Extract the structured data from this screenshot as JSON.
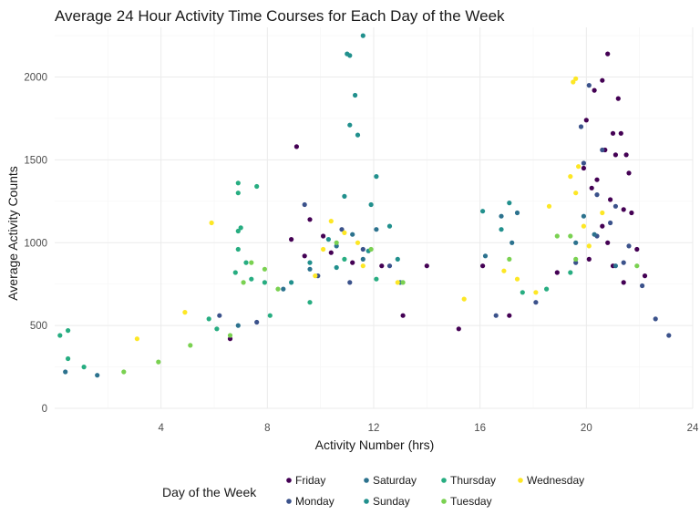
{
  "chart_data": {
    "type": "scatter",
    "title": "Average 24 Hour Activity Time Courses for Each Day of the Week",
    "xlabel": "Activity Number (hrs)",
    "ylabel": "Average Activity Counts",
    "xlim": [
      0,
      24
    ],
    "ylim": [
      0,
      2300
    ],
    "x_ticks": [
      4,
      8,
      12,
      16,
      20,
      24
    ],
    "y_ticks": [
      0,
      500,
      1000,
      1500,
      2000
    ],
    "grid": true,
    "legend_position": "bottom",
    "legend_title": "Day of the Week",
    "series": [
      {
        "name": "Friday",
        "color": "#440154",
        "points": [
          [
            20.8,
            2140
          ],
          [
            20.6,
            1980
          ],
          [
            20.3,
            1920
          ],
          [
            21.2,
            1870
          ],
          [
            20.0,
            1740
          ],
          [
            21.0,
            1660
          ],
          [
            21.3,
            1660
          ],
          [
            20.7,
            1560
          ],
          [
            21.1,
            1530
          ],
          [
            21.5,
            1530
          ],
          [
            19.9,
            1450
          ],
          [
            20.4,
            1380
          ],
          [
            21.6,
            1420
          ],
          [
            20.2,
            1330
          ],
          [
            20.9,
            1260
          ],
          [
            21.4,
            1200
          ],
          [
            21.7,
            1180
          ],
          [
            20.6,
            1100
          ],
          [
            20.8,
            1000
          ],
          [
            21.9,
            960
          ],
          [
            20.1,
            900
          ],
          [
            21.0,
            860
          ],
          [
            22.2,
            800
          ],
          [
            21.4,
            760
          ],
          [
            9.1,
            1580
          ],
          [
            9.6,
            1140
          ],
          [
            10.1,
            1040
          ],
          [
            8.9,
            1020
          ],
          [
            9.4,
            920
          ],
          [
            10.4,
            940
          ],
          [
            11.2,
            880
          ],
          [
            12.3,
            860
          ],
          [
            14.0,
            860
          ],
          [
            16.1,
            860
          ],
          [
            18.9,
            820
          ],
          [
            6.6,
            420
          ],
          [
            13.1,
            560
          ],
          [
            15.2,
            480
          ],
          [
            17.1,
            560
          ]
        ]
      },
      {
        "name": "Monday",
        "color": "#3b528b",
        "points": [
          [
            20.1,
            1950
          ],
          [
            19.8,
            1700
          ],
          [
            20.6,
            1560
          ],
          [
            19.9,
            1480
          ],
          [
            20.4,
            1290
          ],
          [
            21.1,
            1220
          ],
          [
            20.9,
            1120
          ],
          [
            20.4,
            1040
          ],
          [
            21.6,
            980
          ],
          [
            19.6,
            880
          ],
          [
            21.4,
            880
          ],
          [
            22.1,
            740
          ],
          [
            9.4,
            1230
          ],
          [
            10.8,
            1080
          ],
          [
            11.6,
            960
          ],
          [
            12.6,
            860
          ],
          [
            9.9,
            800
          ],
          [
            11.1,
            760
          ],
          [
            6.2,
            560
          ],
          [
            7.6,
            520
          ],
          [
            16.6,
            560
          ],
          [
            18.1,
            640
          ],
          [
            22.6,
            540
          ],
          [
            23.1,
            440
          ]
        ]
      },
      {
        "name": "Saturday",
        "color": "#2c728e",
        "points": [
          [
            11.2,
            1050
          ],
          [
            12.1,
            1080
          ],
          [
            10.6,
            980
          ],
          [
            11.6,
            900
          ],
          [
            9.6,
            840
          ],
          [
            13.0,
            760
          ],
          [
            16.8,
            1160
          ],
          [
            17.4,
            1180
          ],
          [
            16.2,
            920
          ],
          [
            17.2,
            1000
          ],
          [
            19.6,
            1000
          ],
          [
            20.3,
            1050
          ],
          [
            19.9,
            1160
          ],
          [
            21.1,
            860
          ],
          [
            8.6,
            720
          ],
          [
            6.9,
            500
          ],
          [
            0.4,
            220
          ],
          [
            1.6,
            200
          ]
        ]
      },
      {
        "name": "Sunday",
        "color": "#21908d",
        "points": [
          [
            11.6,
            2250
          ],
          [
            11.1,
            2130
          ],
          [
            11.0,
            2140
          ],
          [
            11.3,
            1890
          ],
          [
            11.1,
            1710
          ],
          [
            11.4,
            1650
          ],
          [
            12.1,
            1400
          ],
          [
            10.9,
            1280
          ],
          [
            11.9,
            1230
          ],
          [
            12.6,
            1100
          ],
          [
            10.3,
            1020
          ],
          [
            11.8,
            950
          ],
          [
            12.9,
            900
          ],
          [
            9.6,
            880
          ],
          [
            10.6,
            850
          ],
          [
            17.1,
            1240
          ],
          [
            16.1,
            1190
          ],
          [
            16.8,
            1080
          ],
          [
            8.9,
            760
          ]
        ]
      },
      {
        "name": "Thursday",
        "color": "#27ad81",
        "points": [
          [
            6.9,
            1360
          ],
          [
            6.9,
            1300
          ],
          [
            7.6,
            1340
          ],
          [
            7.0,
            1090
          ],
          [
            6.9,
            1070
          ],
          [
            6.9,
            960
          ],
          [
            7.2,
            880
          ],
          [
            6.8,
            820
          ],
          [
            7.4,
            780
          ],
          [
            7.9,
            760
          ],
          [
            0.5,
            470
          ],
          [
            0.2,
            440
          ],
          [
            0.5,
            300
          ],
          [
            1.1,
            250
          ],
          [
            5.8,
            540
          ],
          [
            6.1,
            480
          ],
          [
            8.1,
            560
          ],
          [
            9.6,
            640
          ],
          [
            10.9,
            900
          ],
          [
            12.1,
            780
          ],
          [
            17.6,
            700
          ],
          [
            18.5,
            720
          ],
          [
            19.4,
            820
          ]
        ]
      },
      {
        "name": "Tuesday",
        "color": "#7ad151",
        "points": [
          [
            7.4,
            880
          ],
          [
            7.9,
            840
          ],
          [
            7.1,
            760
          ],
          [
            8.4,
            720
          ],
          [
            10.6,
            1000
          ],
          [
            11.9,
            960
          ],
          [
            13.1,
            760
          ],
          [
            17.1,
            900
          ],
          [
            18.9,
            1040
          ],
          [
            19.4,
            1040
          ],
          [
            19.6,
            900
          ],
          [
            21.9,
            860
          ],
          [
            2.6,
            220
          ],
          [
            3.9,
            280
          ],
          [
            5.1,
            380
          ],
          [
            6.6,
            440
          ]
        ]
      },
      {
        "name": "Wednesday",
        "color": "#fde725",
        "points": [
          [
            19.6,
            1990
          ],
          [
            19.5,
            1970
          ],
          [
            19.7,
            1460
          ],
          [
            19.4,
            1400
          ],
          [
            19.6,
            1300
          ],
          [
            20.6,
            1180
          ],
          [
            19.9,
            1100
          ],
          [
            20.1,
            980
          ],
          [
            10.4,
            1130
          ],
          [
            10.9,
            1060
          ],
          [
            11.4,
            1000
          ],
          [
            10.1,
            960
          ],
          [
            11.6,
            860
          ],
          [
            9.8,
            800
          ],
          [
            12.9,
            760
          ],
          [
            16.9,
            830
          ],
          [
            17.4,
            780
          ],
          [
            18.6,
            1220
          ],
          [
            5.9,
            1120
          ],
          [
            3.1,
            420
          ],
          [
            4.9,
            580
          ],
          [
            15.4,
            660
          ],
          [
            18.1,
            700
          ]
        ]
      }
    ]
  }
}
